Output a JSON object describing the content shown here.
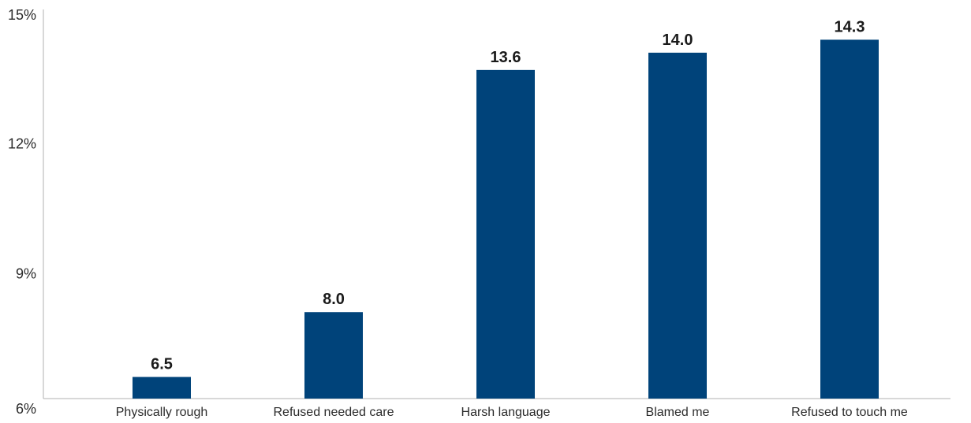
{
  "chart_data": {
    "type": "bar",
    "categories": [
      "Physically rough",
      "Refused needed care",
      "Harsh language",
      "Blamed me",
      "Refused to touch me"
    ],
    "values": [
      6.5,
      8.0,
      13.6,
      14.0,
      14.3
    ],
    "value_labels": [
      "6.5",
      "8.0",
      "13.6",
      "14.0",
      "14.3"
    ],
    "title": "",
    "xlabel": "",
    "ylabel": "",
    "ylim": [
      6,
      15
    ],
    "yticks": [
      6,
      9,
      12,
      15
    ],
    "ytick_labels": [
      "6%",
      "9%",
      "12%",
      "15%"
    ],
    "grid": false,
    "legend": "none",
    "colors": {
      "bar": "#00437a",
      "axis": "#b0b0b0"
    }
  }
}
